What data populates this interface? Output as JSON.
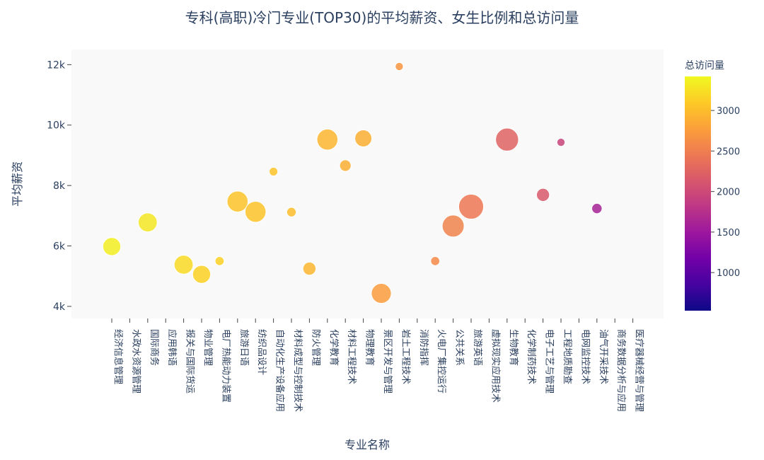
{
  "chart_data": {
    "type": "scatter",
    "title": "专科(高职)冷门专业(TOP30)的平均薪资、女生比例和总访问量",
    "xlabel": "专业名称",
    "ylabel": "平均薪资",
    "ylim": [
      3600,
      12500
    ],
    "y_ticks": [
      4000,
      6000,
      8000,
      10000,
      12000
    ],
    "y_tick_labels": [
      "4k",
      "6k",
      "8k",
      "10k",
      "12k"
    ],
    "categories": [
      "经济信息管理",
      "水政水资源管理",
      "国际商务",
      "应用韩语",
      "报关与国际货运",
      "物业管理",
      "电厂热能动力装置",
      "旅游日语",
      "纺织品设计",
      "自动化生产设备应用",
      "材料成型与控制技术",
      "防火管理",
      "化学教育",
      "材料工程技术",
      "物理教育",
      "景区开发与管理",
      "岩土工程技术",
      "消防指挥",
      "火电厂集控运行",
      "公共关系",
      "旅游英语",
      "虚拟现实应用技术",
      "生物教育",
      "化学制药技术",
      "电子工艺与管理",
      "工程地质勘查",
      "电网监控技术",
      "油气开采技术",
      "商务数据分析与应用",
      "医疗器械经营与管理"
    ],
    "points": [
      {
        "category": "经济信息管理",
        "salary": 5980,
        "female_ratio": 0.55,
        "visits": 3350
      },
      {
        "category": "国际商务",
        "salary": 6780,
        "female_ratio": 0.6,
        "visits": 3300
      },
      {
        "category": "报关与国际货运",
        "salary": 5380,
        "female_ratio": 0.6,
        "visits": 3200
      },
      {
        "category": "物业管理",
        "salary": 5060,
        "female_ratio": 0.55,
        "visits": 3150
      },
      {
        "category": "电厂热能动力装置",
        "salary": 5500,
        "female_ratio": 0.1,
        "visits": 3150
      },
      {
        "category": "旅游日语",
        "salary": 7470,
        "female_ratio": 0.7,
        "visits": 3050
      },
      {
        "category": "纺织品设计",
        "salary": 7130,
        "female_ratio": 0.7,
        "visits": 3050
      },
      {
        "category": "自动化生产设备应用",
        "salary": 8460,
        "female_ratio": 0.08,
        "visits": 3050
      },
      {
        "category": "材料成型与控制技术",
        "salary": 7120,
        "female_ratio": 0.12,
        "visits": 3000
      },
      {
        "category": "防火管理",
        "salary": 5250,
        "female_ratio": 0.3,
        "visits": 2950
      },
      {
        "category": "化学教育",
        "salary": 9520,
        "female_ratio": 0.7,
        "visits": 2950
      },
      {
        "category": "材料工程技术",
        "salary": 8660,
        "female_ratio": 0.22,
        "visits": 2900
      },
      {
        "category": "物理教育",
        "salary": 9560,
        "female_ratio": 0.5,
        "visits": 2900
      },
      {
        "category": "景区开发与管理",
        "salary": 4430,
        "female_ratio": 0.65,
        "visits": 2750
      },
      {
        "category": "岩土工程技术",
        "salary": 11940,
        "female_ratio": 0.05,
        "visits": 2700
      },
      {
        "category": "火电厂集控运行",
        "salary": 5500,
        "female_ratio": 0.1,
        "visits": 2600
      },
      {
        "category": "公共关系",
        "salary": 6660,
        "female_ratio": 0.75,
        "visits": 2550
      },
      {
        "category": "旅游英语",
        "salary": 7300,
        "female_ratio": 0.9,
        "visits": 2450
      },
      {
        "category": "生物教育",
        "salary": 9520,
        "female_ratio": 0.8,
        "visits": 2250
      },
      {
        "category": "电子工艺与管理",
        "salary": 7690,
        "female_ratio": 0.3,
        "visits": 2150
      },
      {
        "category": "工程地质勘查",
        "salary": 9430,
        "female_ratio": 0.05,
        "visits": 1950
      },
      {
        "category": "油气开采技术",
        "salary": 7240,
        "female_ratio": 0.16,
        "visits": 1600
      }
    ],
    "colorbar": {
      "title": "总访问量",
      "min": 530,
      "max": 3420,
      "ticks": [
        1000,
        1500,
        2000,
        2500,
        3000
      ],
      "colors": [
        "#0d0887",
        "#46039f",
        "#7201a8",
        "#9c179e",
        "#bd3786",
        "#d8576b",
        "#ed7953",
        "#fb9f3a",
        "#fdca26",
        "#f0f921"
      ]
    },
    "plot_bg": "#f9f9f9",
    "grid": false
  }
}
